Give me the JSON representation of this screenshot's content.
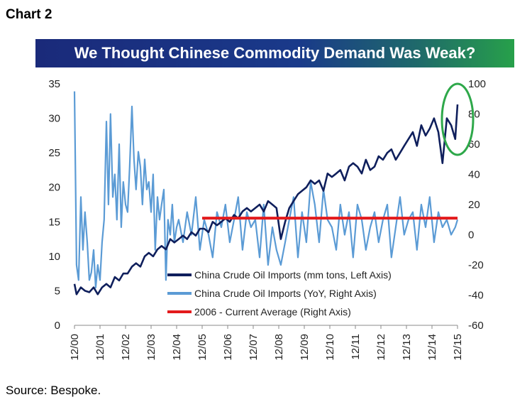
{
  "page": {
    "chart_label": "Chart 2",
    "title": "We Thought Chinese Commodity Demand Was Weak?",
    "source": "Source: Bespoke."
  },
  "colors": {
    "imports_line": "#0f1f5c",
    "yoy_line": "#5b9bd5",
    "average_line": "#e31a1c",
    "highlight_circle": "#2ea84a",
    "title_gradient_start": "#1a2a7a",
    "title_gradient_end": "#27a04a"
  },
  "chart_data": {
    "type": "line",
    "title": "We Thought Chinese Commodity Demand Was Weak?",
    "x_tick_labels": [
      "12/00",
      "12/01",
      "12/02",
      "12/03",
      "12/04",
      "12/05",
      "12/06",
      "12/07",
      "12/08",
      "12/09",
      "12/10",
      "12/11",
      "12/12",
      "12/13",
      "12/14",
      "12/15"
    ],
    "x_range": [
      2000.92,
      2015.92
    ],
    "left_axis": {
      "ylim": [
        0,
        35
      ],
      "ticks": [
        0,
        5,
        10,
        15,
        20,
        25,
        30,
        35
      ]
    },
    "right_axis": {
      "ylim": [
        -60,
        100
      ],
      "ticks": [
        -60,
        -40,
        -20,
        0,
        20,
        40,
        60,
        80,
        100
      ]
    },
    "series": [
      {
        "name": "China Crude Oil Imports (mm tons, Left Axis)",
        "axis": "left",
        "x": [
          2000.92,
          2001.0,
          2001.17,
          2001.33,
          2001.5,
          2001.67,
          2001.83,
          2002.0,
          2002.17,
          2002.33,
          2002.5,
          2002.67,
          2002.83,
          2003.0,
          2003.17,
          2003.33,
          2003.5,
          2003.67,
          2003.83,
          2004.0,
          2004.17,
          2004.33,
          2004.5,
          2004.67,
          2004.83,
          2005.0,
          2005.17,
          2005.33,
          2005.5,
          2005.67,
          2005.83,
          2006.0,
          2006.17,
          2006.33,
          2006.5,
          2006.67,
          2006.83,
          2007.0,
          2007.17,
          2007.33,
          2007.5,
          2007.67,
          2007.83,
          2008.0,
          2008.17,
          2008.33,
          2008.5,
          2008.67,
          2008.83,
          2009.0,
          2009.17,
          2009.33,
          2009.5,
          2009.67,
          2009.83,
          2010.0,
          2010.17,
          2010.33,
          2010.5,
          2010.67,
          2010.83,
          2011.0,
          2011.17,
          2011.33,
          2011.5,
          2011.67,
          2011.83,
          2012.0,
          2012.17,
          2012.33,
          2012.5,
          2012.67,
          2012.83,
          2013.0,
          2013.17,
          2013.33,
          2013.5,
          2013.67,
          2013.83,
          2014.0,
          2014.17,
          2014.33,
          2014.5,
          2014.67,
          2014.83,
          2015.0,
          2015.17,
          2015.33,
          2015.5,
          2015.67,
          2015.83,
          2015.92
        ],
        "values": [
          6,
          4.5,
          5.5,
          5,
          4.8,
          5.5,
          4.5,
          5.5,
          6,
          5.5,
          7,
          6.5,
          7.5,
          7.5,
          8.5,
          9,
          8.5,
          10,
          10.5,
          10,
          11,
          11.5,
          11,
          12.5,
          12,
          12.5,
          13,
          12.5,
          13.5,
          13,
          14,
          14,
          13.5,
          15,
          14.5,
          15,
          15.5,
          15,
          16,
          15.5,
          16.5,
          17,
          16.5,
          17,
          17.5,
          16.5,
          18,
          17.5,
          17,
          12.5,
          15,
          17,
          18,
          19,
          19.5,
          20,
          21,
          20.5,
          21,
          19.5,
          22,
          21.5,
          22,
          22.5,
          21,
          23,
          23.5,
          23,
          22,
          24,
          22.5,
          23,
          24.5,
          24,
          25,
          25.5,
          24,
          25,
          26,
          27,
          28,
          26,
          29,
          27.5,
          28.5,
          30,
          28,
          23.5,
          30,
          29,
          27,
          32
        ]
      },
      {
        "name": "China Crude Oil Imports (YoY, Right Axis)",
        "axis": "right",
        "x": [
          2000.92,
          2001.0,
          2001.08,
          2001.17,
          2001.25,
          2001.33,
          2001.42,
          2001.5,
          2001.58,
          2001.67,
          2001.75,
          2001.83,
          2001.92,
          2002.0,
          2002.08,
          2002.17,
          2002.25,
          2002.33,
          2002.42,
          2002.5,
          2002.58,
          2002.67,
          2002.75,
          2002.83,
          2002.92,
          2003.0,
          2003.08,
          2003.17,
          2003.25,
          2003.33,
          2003.42,
          2003.5,
          2003.58,
          2003.67,
          2003.75,
          2003.83,
          2003.92,
          2004.0,
          2004.08,
          2004.17,
          2004.25,
          2004.33,
          2004.42,
          2004.5,
          2004.58,
          2004.67,
          2004.75,
          2004.83,
          2004.92,
          2005.0,
          2005.17,
          2005.33,
          2005.5,
          2005.67,
          2005.83,
          2006.0,
          2006.17,
          2006.33,
          2006.5,
          2006.67,
          2006.83,
          2007.0,
          2007.17,
          2007.33,
          2007.5,
          2007.67,
          2007.83,
          2008.0,
          2008.17,
          2008.33,
          2008.5,
          2008.67,
          2008.83,
          2009.0,
          2009.17,
          2009.33,
          2009.5,
          2009.67,
          2009.83,
          2010.0,
          2010.17,
          2010.33,
          2010.5,
          2010.67,
          2010.83,
          2011.0,
          2011.17,
          2011.33,
          2011.5,
          2011.67,
          2011.83,
          2012.0,
          2012.17,
          2012.33,
          2012.5,
          2012.67,
          2012.83,
          2013.0,
          2013.17,
          2013.33,
          2013.5,
          2013.67,
          2013.83,
          2014.0,
          2014.17,
          2014.33,
          2014.5,
          2014.67,
          2014.83,
          2015.0,
          2015.17,
          2015.33,
          2015.5,
          2015.67,
          2015.83,
          2015.92
        ],
        "values": [
          95,
          -20,
          -30,
          25,
          -10,
          15,
          -5,
          -30,
          -25,
          -10,
          -35,
          -20,
          -30,
          -5,
          10,
          75,
          20,
          80,
          25,
          40,
          10,
          60,
          5,
          35,
          20,
          15,
          45,
          85,
          50,
          30,
          55,
          45,
          20,
          50,
          30,
          35,
          15,
          40,
          -10,
          25,
          10,
          20,
          30,
          -30,
          10,
          0,
          20,
          -5,
          5,
          10,
          -5,
          15,
          0,
          25,
          -10,
          10,
          0,
          -15,
          15,
          5,
          20,
          -5,
          10,
          25,
          -10,
          15,
          5,
          10,
          -15,
          20,
          -20,
          5,
          -10,
          -20,
          -5,
          10,
          25,
          -15,
          15,
          -5,
          35,
          20,
          -5,
          30,
          10,
          5,
          -10,
          20,
          0,
          15,
          -15,
          20,
          10,
          -10,
          5,
          15,
          -5,
          10,
          20,
          -15,
          5,
          25,
          0,
          10,
          15,
          -10,
          20,
          5,
          25,
          -5,
          15,
          5,
          10,
          0,
          5,
          10
        ]
      },
      {
        "name": "2006 - Current Average (Right Axis)",
        "axis": "right",
        "x": [
          2005.92,
          2015.92
        ],
        "values": [
          11,
          11
        ]
      }
    ],
    "legend": [
      "China Crude Oil Imports (mm tons, Left Axis)",
      "China Crude Oil Imports (YoY, Right Axis)",
      "2006 - Current Average (Right Axis)"
    ],
    "legend_position": "bottom-right",
    "annotation": "green circle around the 2015 spike",
    "grid": false
  }
}
